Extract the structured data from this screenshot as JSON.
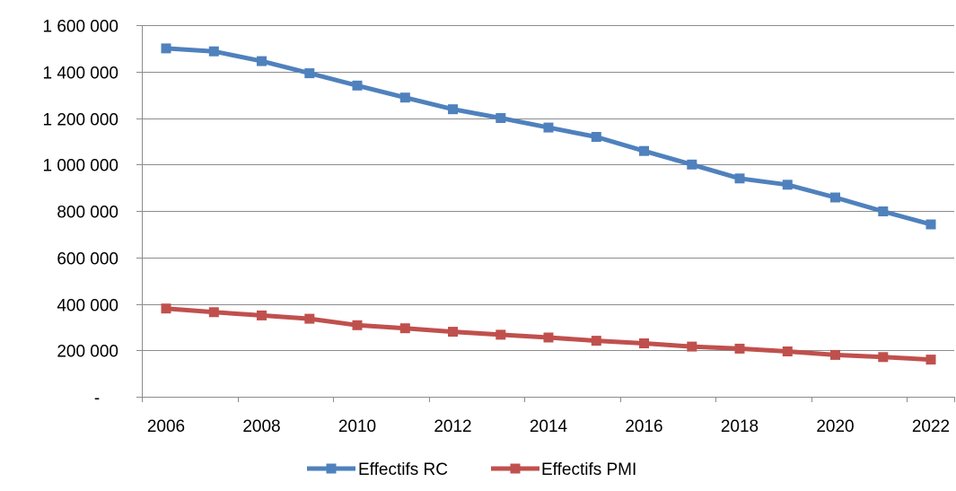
{
  "chart_data": {
    "type": "line",
    "title": "",
    "xlabel": "",
    "ylabel": "",
    "x": [
      2006,
      2007,
      2008,
      2009,
      2010,
      2011,
      2012,
      2013,
      2014,
      2015,
      2016,
      2017,
      2018,
      2019,
      2020,
      2021,
      2022
    ],
    "x_tick_labels": [
      "2006",
      "2008",
      "2010",
      "2012",
      "2014",
      "2016",
      "2018",
      "2020",
      "2022"
    ],
    "y_ticks": [
      0,
      200000,
      400000,
      600000,
      800000,
      1000000,
      1200000,
      1400000,
      1600000
    ],
    "y_tick_labels": [
      "-",
      "200 000",
      "400 000",
      "600 000",
      "800 000",
      "1 000 000",
      "1 200 000",
      "1 400 000",
      "1 600 000"
    ],
    "ylim": [
      0,
      1600000
    ],
    "grid": true,
    "legend_position": "bottom",
    "series": [
      {
        "name": "Effectifs RC",
        "color": "#4f81bd",
        "marker": "square",
        "values": [
          1500000,
          1487000,
          1445000,
          1393000,
          1340000,
          1288000,
          1238000,
          1200000,
          1159000,
          1119000,
          1058000,
          1000000,
          940000,
          913000,
          858000,
          798000,
          742000
        ]
      },
      {
        "name": "Effectifs PMI",
        "color": "#c0504d",
        "marker": "square",
        "values": [
          380000,
          364000,
          350000,
          336000,
          308000,
          295000,
          280000,
          267000,
          255000,
          241000,
          230000,
          216000,
          207000,
          195000,
          180000,
          171000,
          160000
        ]
      }
    ]
  }
}
